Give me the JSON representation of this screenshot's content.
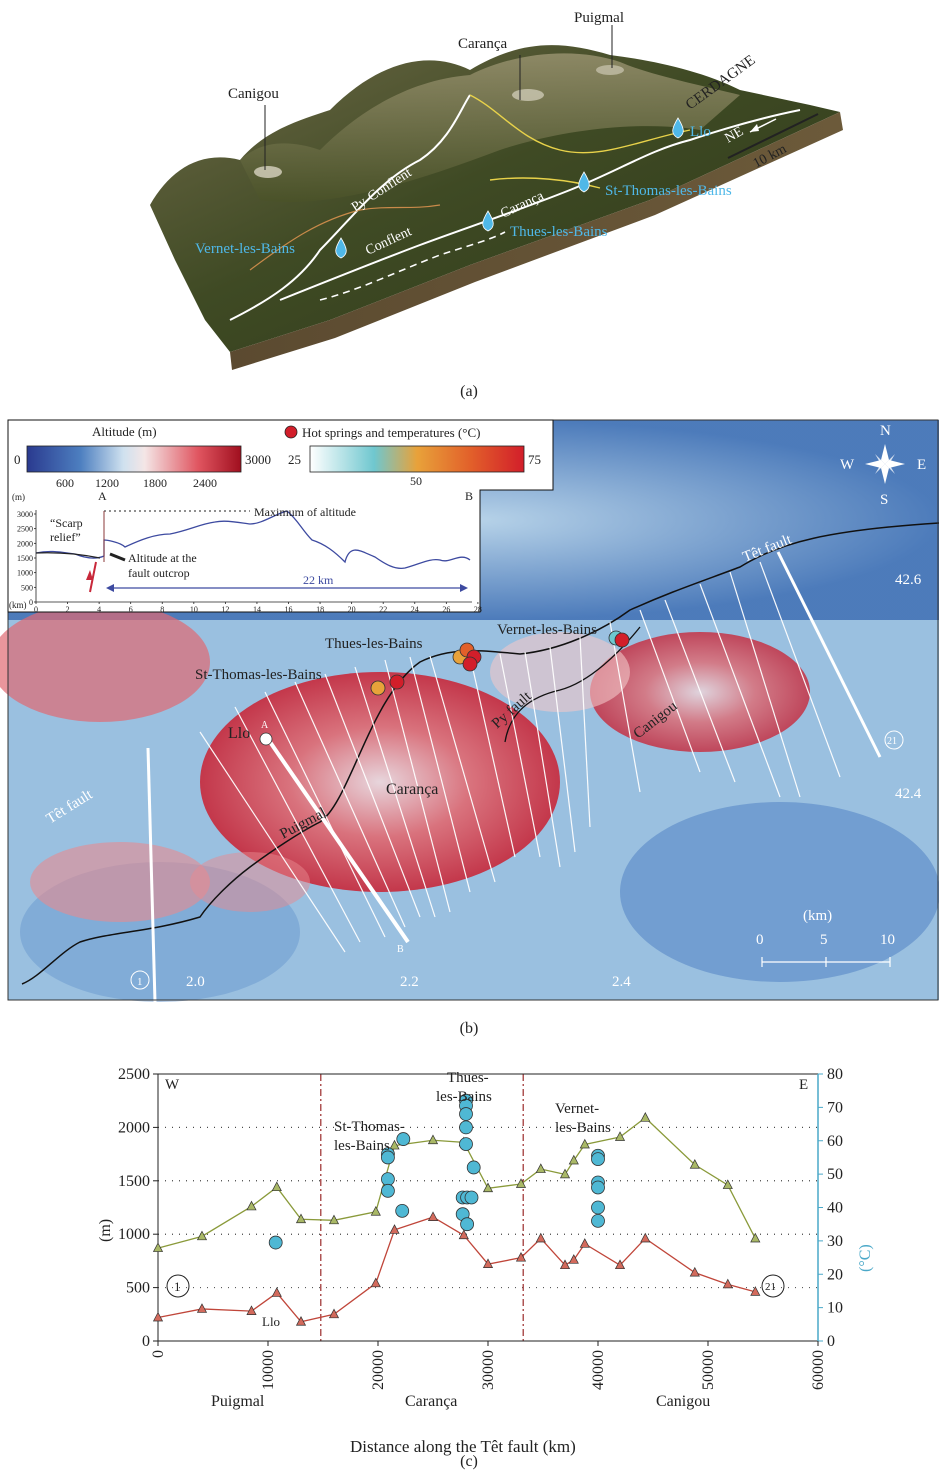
{
  "panel_a": {
    "caption": "(a)",
    "peaks": [
      "Canigou",
      "Carança",
      "Puigmal"
    ],
    "region": "CERDAGNE",
    "faults": [
      "Py-Conflent",
      "Conflent",
      "Carança"
    ],
    "springs": [
      "Llo",
      "St-Thomas-les-Bains",
      "Thues-les-Bains",
      "Vernet-les-Bains"
    ],
    "north_arrow": "NE",
    "scale": "10 km",
    "colors": {
      "sky": "#ffffff",
      "terrain_dark": "#3e4a22",
      "terrain_light": "#8a8052",
      "fault_line": "#ffffff",
      "yellow_line": "#e8d24a",
      "spring": "#4fb8e8"
    }
  },
  "panel_b": {
    "caption": "(b)",
    "legend": {
      "altitude_title": "Altitude (m)",
      "altitude_min": "0",
      "altitude_max": "3000",
      "altitude_ticks": [
        "600",
        "1200",
        "1800",
        "2400"
      ],
      "springs_title": "Hot springs and temperatures (°C)",
      "temp_min": "25",
      "temp_max": "75",
      "temp_mid": "50"
    },
    "inset_profile": {
      "label_a": "A",
      "label_b": "B",
      "unit_y": "(m)",
      "unit_x": "(km)",
      "y_ticks": [
        "3000",
        "2500",
        "2000",
        "1500",
        "1000",
        "500",
        "0"
      ],
      "x_ticks": [
        "0",
        "2",
        "4",
        "6",
        "8",
        "10",
        "12",
        "14",
        "16",
        "18",
        "20",
        "22",
        "24",
        "26",
        "28"
      ],
      "scarp_label_1": "“Scarp",
      "scarp_label_2": "relief”",
      "max_label": "Maximum of altitude",
      "fault_label_1": "Altitude at the",
      "fault_label_2": "fault outcrop",
      "distance_label": "22 km"
    },
    "compass": {
      "n": "N",
      "s": "S",
      "e": "E",
      "w": "W"
    },
    "lat_labels": [
      "42.6",
      "42.4"
    ],
    "lon_labels": [
      "2.0",
      "2.2",
      "2.4"
    ],
    "place_labels": {
      "tet_fault_east": "Têt fault",
      "tet_fault_west": "Têt fault",
      "vernet": "Vernet-les-Bains",
      "thues": "Thues-les-Bains",
      "st_thomas": "St-Thomas-les-Bains",
      "llo": "Llo",
      "py_fault": "Py fault",
      "canigou": "Canigou",
      "caranca": "Carança",
      "puigmal": "Puigmal",
      "profile_a": "A",
      "profile_b": "B",
      "section_1": "1",
      "section_21": "21"
    },
    "scalebar": {
      "unit": "(km)",
      "ticks": [
        "0",
        "5",
        "10"
      ]
    }
  },
  "chart_data": {
    "type": "line",
    "caption": "(c)",
    "xlabel": "Distance along the Têt fault (km)",
    "ylabel": "(m)",
    "y2label": "(°C)",
    "xlim": [
      0,
      60000
    ],
    "ylim": [
      0,
      2500
    ],
    "y2lim": [
      0,
      80
    ],
    "x_ticks": [
      0,
      10000,
      20000,
      30000,
      40000,
      50000,
      60000
    ],
    "y_ticks": [
      0,
      500,
      1000,
      1500,
      2000,
      2500
    ],
    "y2_ticks": [
      0,
      10,
      20,
      30,
      40,
      50,
      60,
      70,
      80
    ],
    "grid": "dotted horizontal",
    "series": [
      {
        "color": "#8a9a3a",
        "marker_color": "#a9b866",
        "x": [
          0,
          4000,
          8500,
          10800,
          13000,
          16000,
          19800,
          21500,
          25000,
          27800,
          30000,
          33000,
          34800,
          37000,
          37800,
          38800,
          42000,
          44300,
          48800,
          51800,
          54300
        ],
        "y": [
          870,
          980,
          1260,
          1440,
          1140,
          1130,
          1210,
          1830,
          1880,
          1860,
          1430,
          1470,
          1610,
          1560,
          1690,
          1840,
          1910,
          2090,
          1650,
          1460,
          960
        ]
      },
      {
        "color": "#c0463a",
        "marker_color": "#d36a5c",
        "x": [
          0,
          4000,
          8500,
          10800,
          13000,
          16000,
          19800,
          21500,
          25000,
          27800,
          30000,
          33000,
          34800,
          37000,
          37800,
          38800,
          42000,
          44300,
          48800,
          51800,
          54300
        ],
        "y": [
          220,
          300,
          280,
          450,
          180,
          250,
          540,
          1040,
          1160,
          990,
          720,
          780,
          960,
          710,
          760,
          910,
          710,
          960,
          640,
          530,
          460
        ]
      },
      {
        "type": "scatter",
        "axis": "right",
        "color": "#4fb8d4",
        "x": [
          10700,
          20900,
          20900,
          20900,
          20900,
          22200,
          22300,
          27700,
          27700,
          28000,
          28000,
          28000,
          28000,
          28000,
          28100,
          28100,
          28500,
          28700,
          40000,
          40000,
          40000,
          40000,
          40000,
          40000
        ],
        "y": [
          29.5,
          56,
          55,
          48.5,
          45,
          39,
          60.5,
          43,
          38,
          72,
          70.5,
          68,
          64,
          59,
          43,
          35,
          43,
          52,
          55.5,
          54.5,
          47.5,
          46,
          40,
          36
        ]
      }
    ],
    "annotations": {
      "west": "W",
      "east": "E",
      "section_1": "1",
      "section_21": "21",
      "llo": "Llo",
      "st_thomas_1": "St-Thomas-",
      "st_thomas_2": "les-Bains",
      "thues_1": "Thues-",
      "thues_2": "les-Bains",
      "vernet_1": "Vernet-",
      "vernet_2": "les-Bains",
      "puigmal": "Puigmal",
      "caranca": "Carança",
      "canigou": "Canigou"
    },
    "dividers_x": [
      14800,
      33200
    ],
    "colors": {
      "axis_right": "#4aa8c8",
      "divider": "#9a2a2a"
    }
  }
}
